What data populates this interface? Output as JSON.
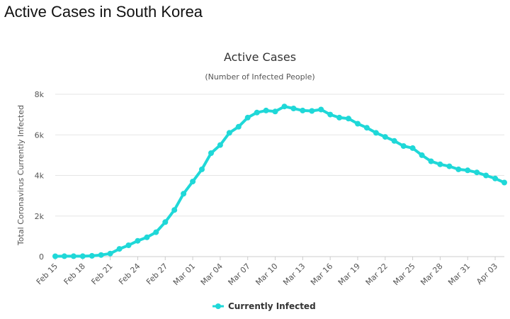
{
  "page": {
    "heading": "Active Cases in South Korea"
  },
  "chart_data": {
    "type": "line",
    "title": "Active Cases",
    "subtitle": "(Number of Infected People)",
    "xlabel": "",
    "ylabel": "Total Coronavirus Currently Infected",
    "ylim": [
      0,
      8000
    ],
    "y_ticks": [
      0,
      2000,
      4000,
      6000,
      8000
    ],
    "y_tick_labels": [
      "0",
      "2k",
      "4k",
      "6k",
      "8k"
    ],
    "grid": true,
    "legend_position": "bottom-center",
    "color": "#1fd8d8",
    "x_tick_labels": [
      "Feb 15",
      "Feb 18",
      "Feb 21",
      "Feb 24",
      "Feb 27",
      "Mar 01",
      "Mar 04",
      "Mar 07",
      "Mar 10",
      "Mar 13",
      "Mar 16",
      "Mar 19",
      "Mar 22",
      "Mar 25",
      "Mar 28",
      "Mar 31",
      "Apr 03"
    ],
    "x": [
      "Feb 15",
      "Feb 16",
      "Feb 17",
      "Feb 18",
      "Feb 19",
      "Feb 20",
      "Feb 21",
      "Feb 22",
      "Feb 23",
      "Feb 24",
      "Feb 25",
      "Feb 26",
      "Feb 27",
      "Feb 28",
      "Feb 29",
      "Mar 01",
      "Mar 02",
      "Mar 03",
      "Mar 04",
      "Mar 05",
      "Mar 06",
      "Mar 07",
      "Mar 08",
      "Mar 09",
      "Mar 10",
      "Mar 11",
      "Mar 12",
      "Mar 13",
      "Mar 14",
      "Mar 15",
      "Mar 16",
      "Mar 17",
      "Mar 18",
      "Mar 19",
      "Mar 20",
      "Mar 21",
      "Mar 22",
      "Mar 23",
      "Mar 24",
      "Mar 25",
      "Mar 26",
      "Mar 27",
      "Mar 28",
      "Mar 29",
      "Mar 30",
      "Mar 31",
      "Apr 01",
      "Apr 02",
      "Apr 03",
      "Apr 04"
    ],
    "series": [
      {
        "name": "Currently Infected",
        "values": [
          19,
          21,
          21,
          22,
          40,
          80,
          150,
          380,
          560,
          780,
          950,
          1200,
          1700,
          2300,
          3100,
          3700,
          4300,
          5100,
          5500,
          6100,
          6400,
          6850,
          7100,
          7200,
          7150,
          7400,
          7300,
          7200,
          7180,
          7250,
          7000,
          6850,
          6800,
          6550,
          6350,
          6100,
          5900,
          5700,
          5450,
          5350,
          5000,
          4700,
          4550,
          4450,
          4300,
          4250,
          4150,
          4000,
          3850,
          3650
        ]
      }
    ]
  }
}
